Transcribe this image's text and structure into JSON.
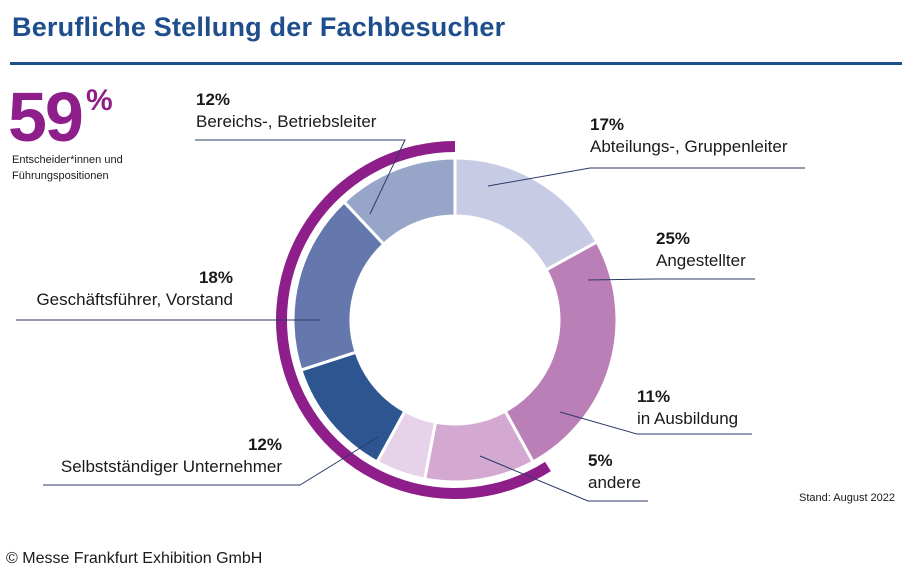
{
  "title": "Berufliche Stellung der Fachbesucher",
  "highlight": {
    "value": "59",
    "unit": "%",
    "description": "Entscheider*innen und Führungspositionen"
  },
  "chart_data": {
    "type": "pie",
    "variant": "donut",
    "unit": "%",
    "start_angle_deg": 0,
    "direction": "clockwise",
    "slices": [
      {
        "label": "Abteilungs-, Gruppenleiter",
        "value": 17,
        "value_label": "17%",
        "color": "#c7cbe4"
      },
      {
        "label": "Angestellter",
        "value": 25,
        "value_label": "25%",
        "color": "#b97fb6"
      },
      {
        "label": "in Ausbildung",
        "value": 11,
        "value_label": "11%",
        "color": "#d4a9d1"
      },
      {
        "label": "andere",
        "value": 5,
        "value_label": "5%",
        "color": "#e7d3e9"
      },
      {
        "label": "Selbstständiger Unternehmer",
        "value": 12,
        "value_label": "12%",
        "color": "#2d5690"
      },
      {
        "label": "Geschäftsführer, Vorstand",
        "value": 18,
        "value_label": "18%",
        "color": "#6478ad"
      },
      {
        "label": "Bereichs-, Betriebsleiter",
        "value": 12,
        "value_label": "12%",
        "color": "#97a5c9"
      }
    ],
    "highlight_arc": {
      "from_start_value": 41,
      "value": 59,
      "color": "#8e1f8a",
      "label": "59%"
    }
  },
  "footnote": "Stand: August 2022",
  "copyright": "© Messe Frankfurt Exhibition GmbH"
}
